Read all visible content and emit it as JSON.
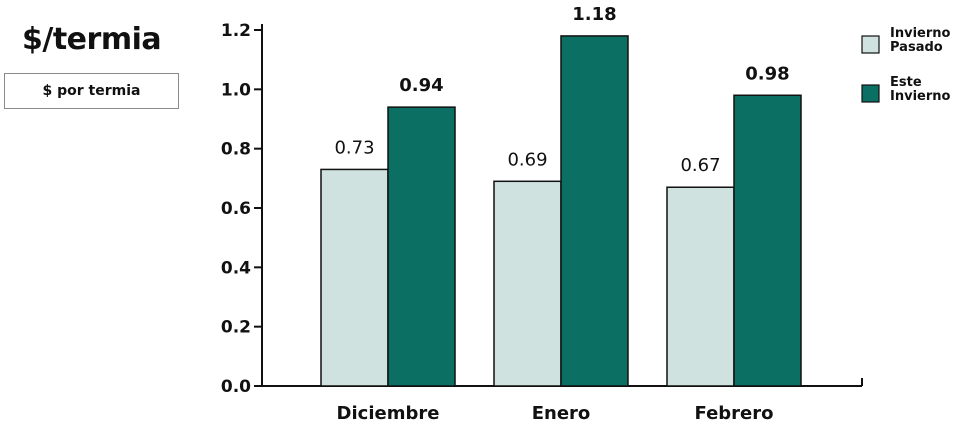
{
  "title": "$/termia",
  "unit_label": "$ por termia",
  "colors": {
    "last_winter": "#cfe2df",
    "this_winter": "#0b7063",
    "axis": "#111111"
  },
  "chart_data": {
    "type": "bar",
    "title": "$/termia",
    "xlabel": "",
    "ylabel": "$ por termia",
    "ylim": [
      0,
      1.2
    ],
    "yticks": [
      "0.0",
      "0.2",
      "0.4",
      "0.6",
      "0.8",
      "1.0",
      "1.2"
    ],
    "categories": [
      "Diciembre",
      "Enero",
      "Febrero"
    ],
    "series": [
      {
        "name": "Invierno Pasado",
        "legend_lines": [
          "Invierno",
          "Pasado"
        ],
        "values": [
          0.73,
          0.69,
          0.67
        ],
        "labels": [
          "0.73",
          "0.69",
          "0.67"
        ]
      },
      {
        "name": "Este Invierno",
        "legend_lines": [
          "Este",
          "Invierno"
        ],
        "values": [
          0.94,
          1.18,
          0.98
        ],
        "labels": [
          "0.94",
          "1.18",
          "0.98"
        ]
      }
    ],
    "grid": false,
    "legend_position": "right"
  }
}
